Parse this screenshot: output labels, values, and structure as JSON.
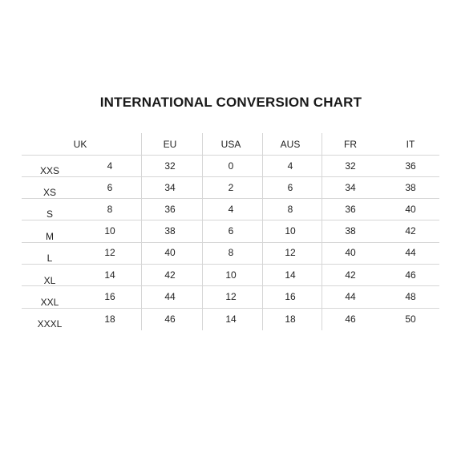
{
  "title": "INTERNATIONAL CONVERSION CHART",
  "table": {
    "headers": [
      "UK",
      "EU",
      "USA",
      "AUS",
      "FR",
      "IT"
    ],
    "rows": [
      {
        "size": "XXS",
        "values": [
          "4",
          "32",
          "0",
          "4",
          "32",
          "36"
        ]
      },
      {
        "size": "XS",
        "values": [
          "6",
          "34",
          "2",
          "6",
          "34",
          "38"
        ]
      },
      {
        "size": "S",
        "values": [
          "8",
          "36",
          "4",
          "8",
          "36",
          "40"
        ]
      },
      {
        "size": "M",
        "values": [
          "10",
          "38",
          "6",
          "10",
          "38",
          "42"
        ]
      },
      {
        "size": "L",
        "values": [
          "12",
          "40",
          "8",
          "12",
          "40",
          "44"
        ]
      },
      {
        "size": "XL",
        "values": [
          "14",
          "42",
          "10",
          "14",
          "42",
          "46"
        ]
      },
      {
        "size": "XXL",
        "values": [
          "16",
          "44",
          "12",
          "16",
          "44",
          "48"
        ]
      },
      {
        "size": "XXXL",
        "values": [
          "18",
          "46",
          "14",
          "18",
          "46",
          "50"
        ]
      }
    ]
  },
  "colors": {
    "grid": "#d6d6d6",
    "text": "#222222"
  }
}
